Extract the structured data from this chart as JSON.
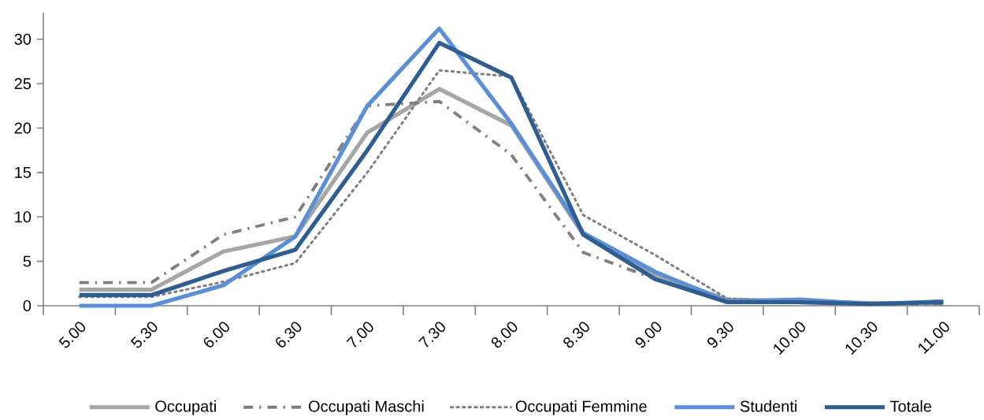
{
  "chart_data": {
    "type": "line",
    "categories": [
      "5.00",
      "5.30",
      "6.00",
      "6.30",
      "7.00",
      "7.30",
      "8.00",
      "8.30",
      "9.00",
      "9.30",
      "10.00",
      "10.30",
      "11.00"
    ],
    "series": [
      {
        "name": "Occupati",
        "color": "#a6a6a6",
        "line_style": "solid",
        "values": [
          1.8,
          1.8,
          6.1,
          7.8,
          19.5,
          24.4,
          20.3,
          8,
          3.5,
          0.7,
          0.5,
          0.3,
          0.3
        ]
      },
      {
        "name": "Occupati Maschi",
        "color": "#7f7f7f",
        "line_style": "dashed",
        "values": [
          2.6,
          2.6,
          8,
          10,
          22.5,
          23,
          17,
          6,
          3,
          0.6,
          0.4,
          0.2,
          0.2
        ]
      },
      {
        "name": "Occupati Femmine",
        "color": "#7f7f7f",
        "line_style": "dotted",
        "values": [
          1,
          1,
          2.7,
          4.8,
          15,
          26.5,
          25.8,
          10.2,
          5.7,
          0.8,
          0.5,
          0.3,
          0.3
        ]
      },
      {
        "name": "Studenti",
        "color": "#5b8fd5",
        "line_style": "solid",
        "values": [
          0,
          0,
          2.3,
          7.8,
          22.5,
          31.2,
          20.5,
          8.2,
          3.8,
          0.5,
          0.7,
          0.2,
          0.5
        ]
      },
      {
        "name": "Totale",
        "color": "#2f5d91",
        "line_style": "solid",
        "values": [
          1.2,
          1.2,
          3.9,
          6.3,
          17.5,
          29.6,
          25.7,
          8,
          3,
          0.4,
          0.4,
          0.2,
          0.4
        ]
      }
    ],
    "ylim": [
      0,
      33
    ],
    "yticks": [
      0,
      5,
      10,
      15,
      20,
      25,
      30
    ],
    "grid": false,
    "legend": "bottom",
    "marker": "none"
  }
}
